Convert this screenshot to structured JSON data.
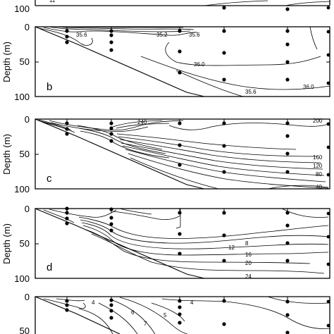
{
  "chart_data": [
    {
      "type": "contour",
      "panel_label": "",
      "ylabel": "",
      "ylim": [
        0,
        100
      ],
      "y_ticks": [
        "100"
      ],
      "contour_labels": [
        "11"
      ],
      "partial": "bottom-only"
    },
    {
      "type": "contour",
      "panel_label": "b",
      "ylabel": "Depth (m)",
      "ylim": [
        0,
        100
      ],
      "y_ticks": [
        "0",
        "50",
        "100"
      ],
      "contour_labels": [
        "35.6",
        "35.2",
        "35.6",
        "36.0",
        "36.0",
        "35.6"
      ],
      "stations_depths": [
        [
          5,
          14,
          22
        ],
        [
          5,
          12,
          22,
          33
        ],
        [
          5,
          35,
          65
        ],
        [
          5,
          37,
          75
        ],
        [
          5,
          25,
          50,
          75
        ],
        [
          5,
          40,
          80
        ]
      ]
    },
    {
      "type": "contour",
      "panel_label": "c",
      "ylabel": "Depth (m)",
      "ylim": [
        0,
        100
      ],
      "y_ticks": [
        "0",
        "50",
        "100"
      ],
      "contour_labels": [
        "240",
        "200",
        "160",
        "120",
        "80",
        "40"
      ],
      "stations_depths": [
        [
          5,
          14,
          22
        ],
        [
          5,
          12,
          22,
          33
        ],
        [
          5,
          35,
          65
        ],
        [
          5,
          37,
          75
        ],
        [
          5,
          25,
          50,
          75
        ],
        [
          5,
          40,
          80
        ]
      ]
    },
    {
      "type": "contour",
      "panel_label": "d",
      "ylabel": "Depth (m)",
      "ylim": [
        0,
        100
      ],
      "y_ticks": [
        "0",
        "50",
        "100"
      ],
      "contour_labels": [
        "12",
        "8",
        "16",
        "20",
        "24"
      ],
      "stations_depths": [
        [
          5,
          14,
          22
        ],
        [
          5,
          12,
          22,
          33
        ],
        [
          5,
          35,
          65
        ],
        [
          5,
          37,
          75
        ],
        [
          5,
          25,
          50,
          75
        ],
        [
          5,
          40,
          80
        ]
      ]
    },
    {
      "type": "contour",
      "panel_label": "",
      "ylabel": "",
      "ylim": [
        0,
        100
      ],
      "y_ticks": [
        "0",
        "50"
      ],
      "contour_labels": [
        "4",
        "7",
        "6",
        "5",
        "4"
      ],
      "partial": "top-only"
    }
  ]
}
